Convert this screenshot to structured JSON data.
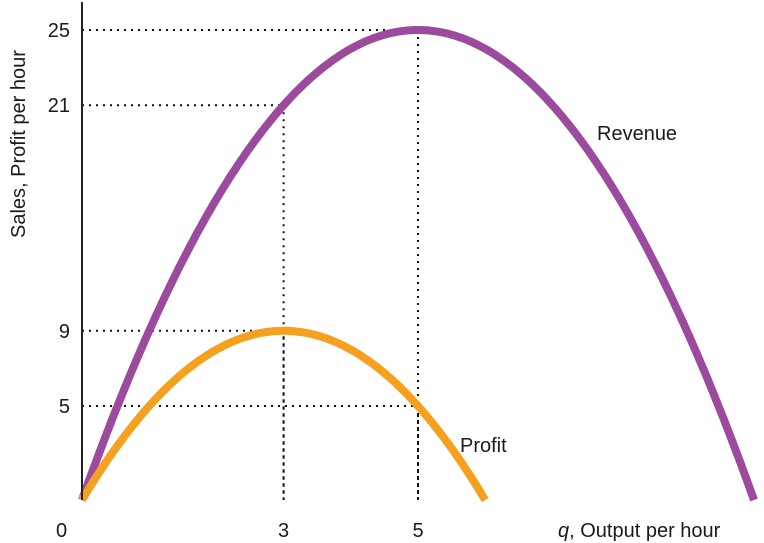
{
  "chart_data": {
    "type": "line",
    "title": "",
    "xlabel_var": "q",
    "xlabel_text": ", Output per hour",
    "ylabel": "Sales, Profit per hour",
    "origin_label": "0",
    "xlim": [
      0,
      10
    ],
    "ylim": [
      0,
      25
    ],
    "x_ticks": [
      3,
      5
    ],
    "y_ticks": [
      5,
      9,
      21,
      25
    ],
    "grid": false,
    "series": [
      {
        "name": "Revenue",
        "color": "#9b4a9e",
        "x": [
          0,
          0.5,
          1,
          1.5,
          2,
          2.5,
          3,
          3.5,
          4,
          4.5,
          5,
          5.5,
          6,
          6.5,
          7,
          7.5,
          8,
          8.5,
          9,
          9.5,
          10
        ],
        "y": [
          0,
          4.75,
          9,
          12.75,
          16,
          18.75,
          21,
          22.75,
          24,
          24.75,
          25,
          24.75,
          24,
          22.75,
          21,
          18.75,
          16,
          12.75,
          9,
          4.75,
          0
        ]
      },
      {
        "name": "Profit",
        "color": "#f5a01e",
        "x": [
          0,
          0.5,
          1,
          1.5,
          2,
          2.5,
          3,
          3.5,
          4,
          4.5,
          5,
          5.5,
          6
        ],
        "y": [
          0,
          2.75,
          5,
          6.75,
          8,
          8.75,
          9,
          8.75,
          8,
          6.75,
          5,
          2.75,
          0
        ]
      }
    ],
    "guides": [
      {
        "x": 3,
        "y": 21
      },
      {
        "x": 5,
        "y": 25
      },
      {
        "x": 3,
        "y": 9
      },
      {
        "x": 5,
        "y": 5
      }
    ]
  }
}
